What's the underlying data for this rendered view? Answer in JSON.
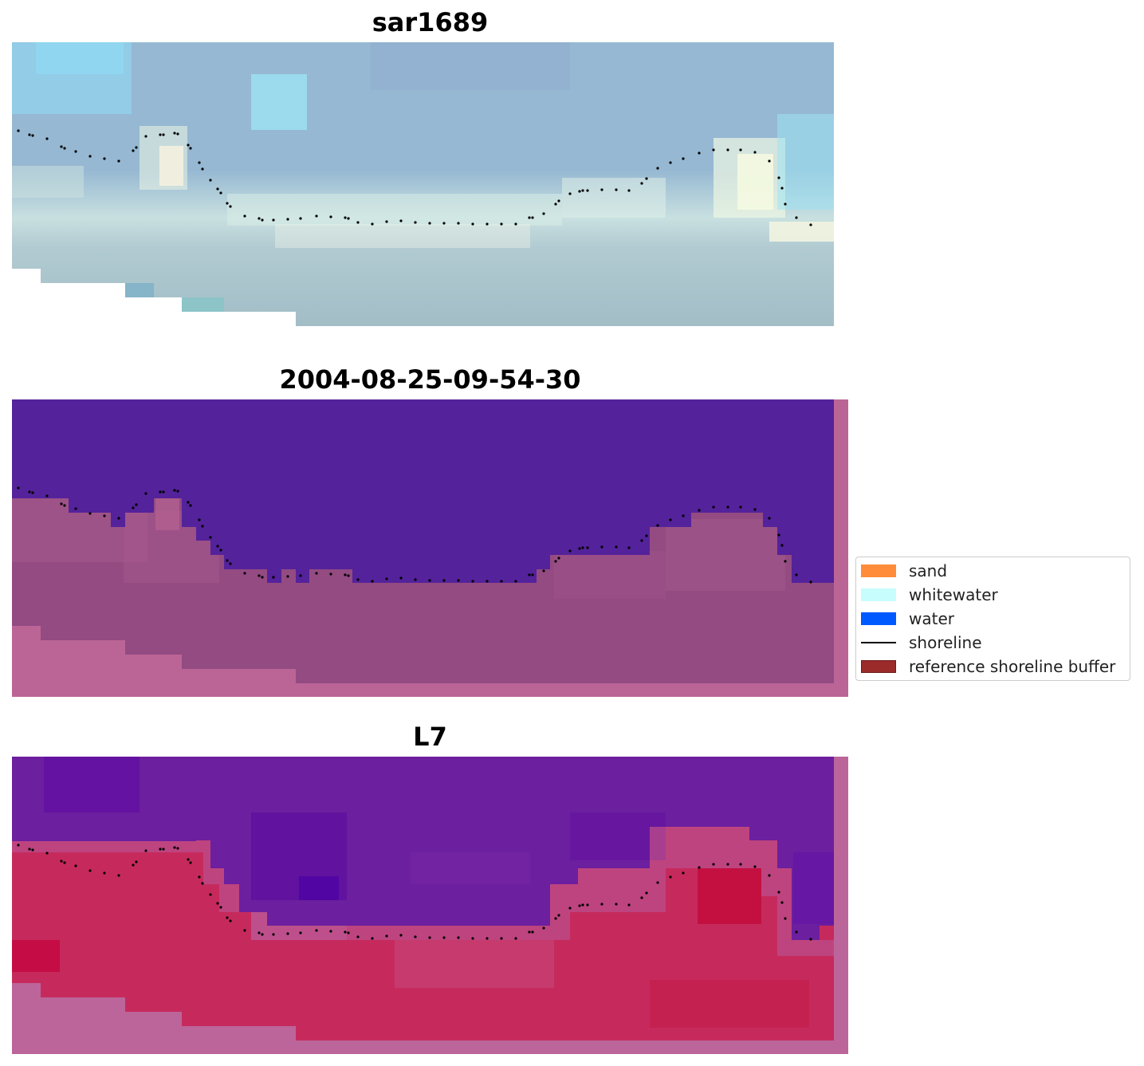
{
  "panels": [
    {
      "title": "sar1689"
    },
    {
      "title": "2004-08-25-09-54-30"
    },
    {
      "title": "L7"
    }
  ],
  "legend": {
    "items": [
      {
        "label": "sand",
        "color": "#ff8c3a",
        "kind": "patch"
      },
      {
        "label": "whitewater",
        "color": "#c8fdfd",
        "kind": "patch"
      },
      {
        "label": "water",
        "color": "#0059ff",
        "kind": "patch"
      },
      {
        "label": "shoreline",
        "color": "#000000",
        "kind": "line"
      },
      {
        "label": "reference shoreline buffer",
        "color": "#9b2a2a",
        "kind": "patch"
      }
    ]
  },
  "colors": {
    "sar_sky": "#96b8d2",
    "sar_light": "#90dcf5",
    "sar_beach": "#f7f2df",
    "sar_lower": "#a2bdc6",
    "class_water": "#54229a",
    "class_land": "#934b82",
    "buffer_pink": "#bb6596",
    "l7_purple": "#6c1f9e",
    "l7_red": "#c62a5d",
    "l7_border": "#bc659a"
  }
}
